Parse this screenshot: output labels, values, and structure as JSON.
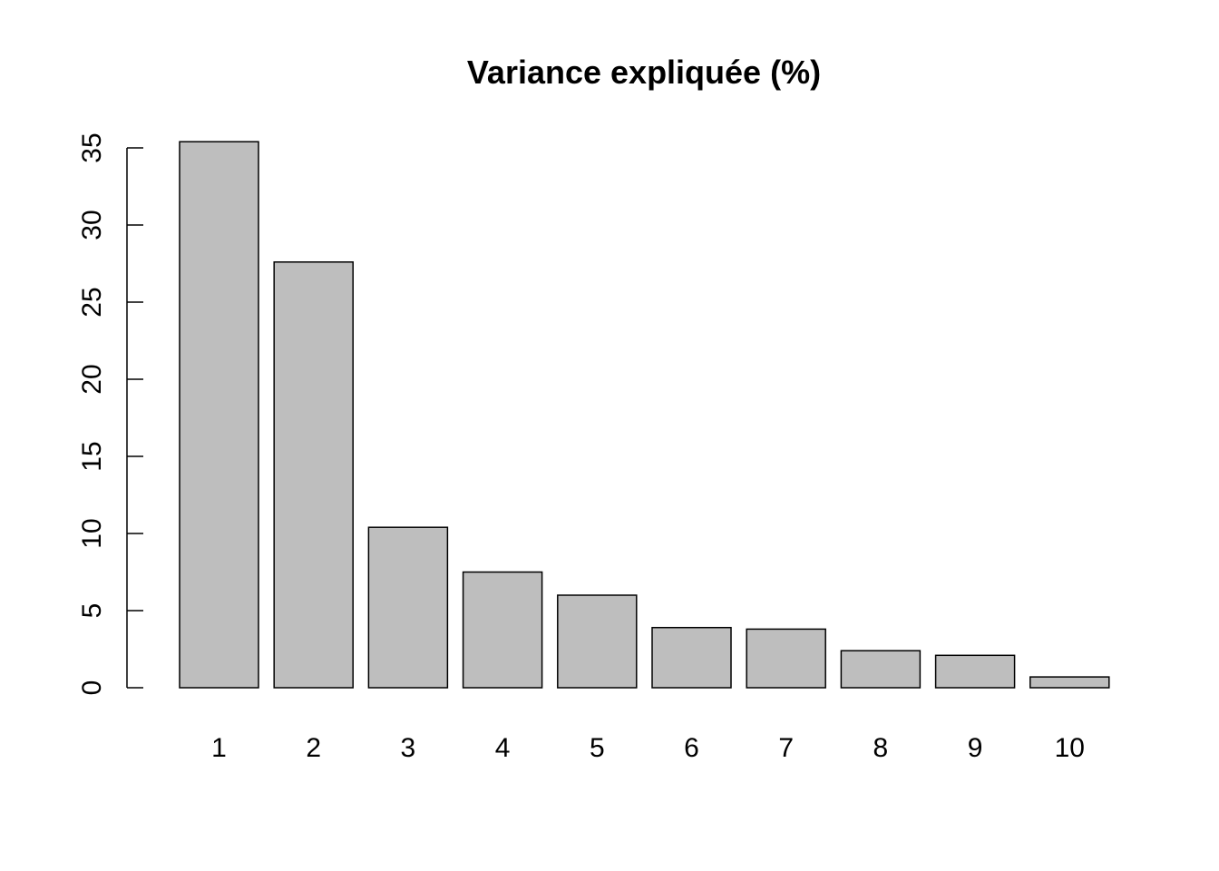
{
  "chart_data": {
    "type": "bar",
    "title": "Variance expliquée (%)",
    "xlabel": "",
    "ylabel": "",
    "categories": [
      "1",
      "2",
      "3",
      "4",
      "5",
      "6",
      "7",
      "8",
      "9",
      "10"
    ],
    "values": [
      35.4,
      27.6,
      10.4,
      7.5,
      6.0,
      3.9,
      3.8,
      2.4,
      2.1,
      0.7
    ],
    "ylim": [
      0,
      35
    ],
    "yticks": [
      "0",
      "5",
      "10",
      "15",
      "20",
      "25",
      "30",
      "35"
    ],
    "grid": false,
    "legend": "none",
    "bar_color": "#bebebe",
    "edge_color": "#000000"
  }
}
